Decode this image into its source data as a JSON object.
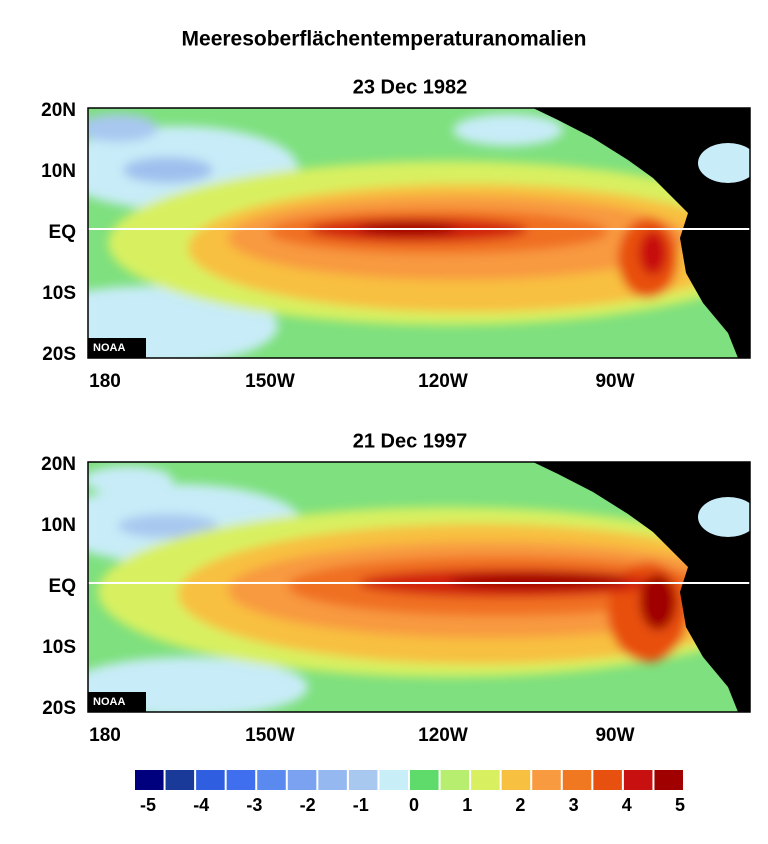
{
  "title": "Meeresoberflächentemperaturanomalien",
  "panels": [
    {
      "title": "23 Dec 1982",
      "watermark": "NOAA"
    },
    {
      "title": "21 Dec 1997",
      "watermark": "NOAA"
    }
  ],
  "y_labels": [
    "20N",
    "10N",
    "EQ",
    "10S",
    "20S"
  ],
  "x_labels": [
    "180",
    "150W",
    "120W",
    "90W"
  ],
  "colorbar": {
    "colors": [
      "#00007e",
      "#1a3a9a",
      "#2f5fe0",
      "#3f6fef",
      "#5a8af0",
      "#7aa2f0",
      "#96b8f0",
      "#a8c8f0",
      "#c8eef8",
      "#5edb6a",
      "#b8ee70",
      "#d8f060",
      "#f8c040",
      "#f89a40",
      "#f07820",
      "#e85010",
      "#c81010",
      "#a00000"
    ],
    "ticks": [
      -5,
      -4,
      -3,
      -2,
      -1,
      0,
      1,
      2,
      3,
      4,
      5
    ]
  }
}
